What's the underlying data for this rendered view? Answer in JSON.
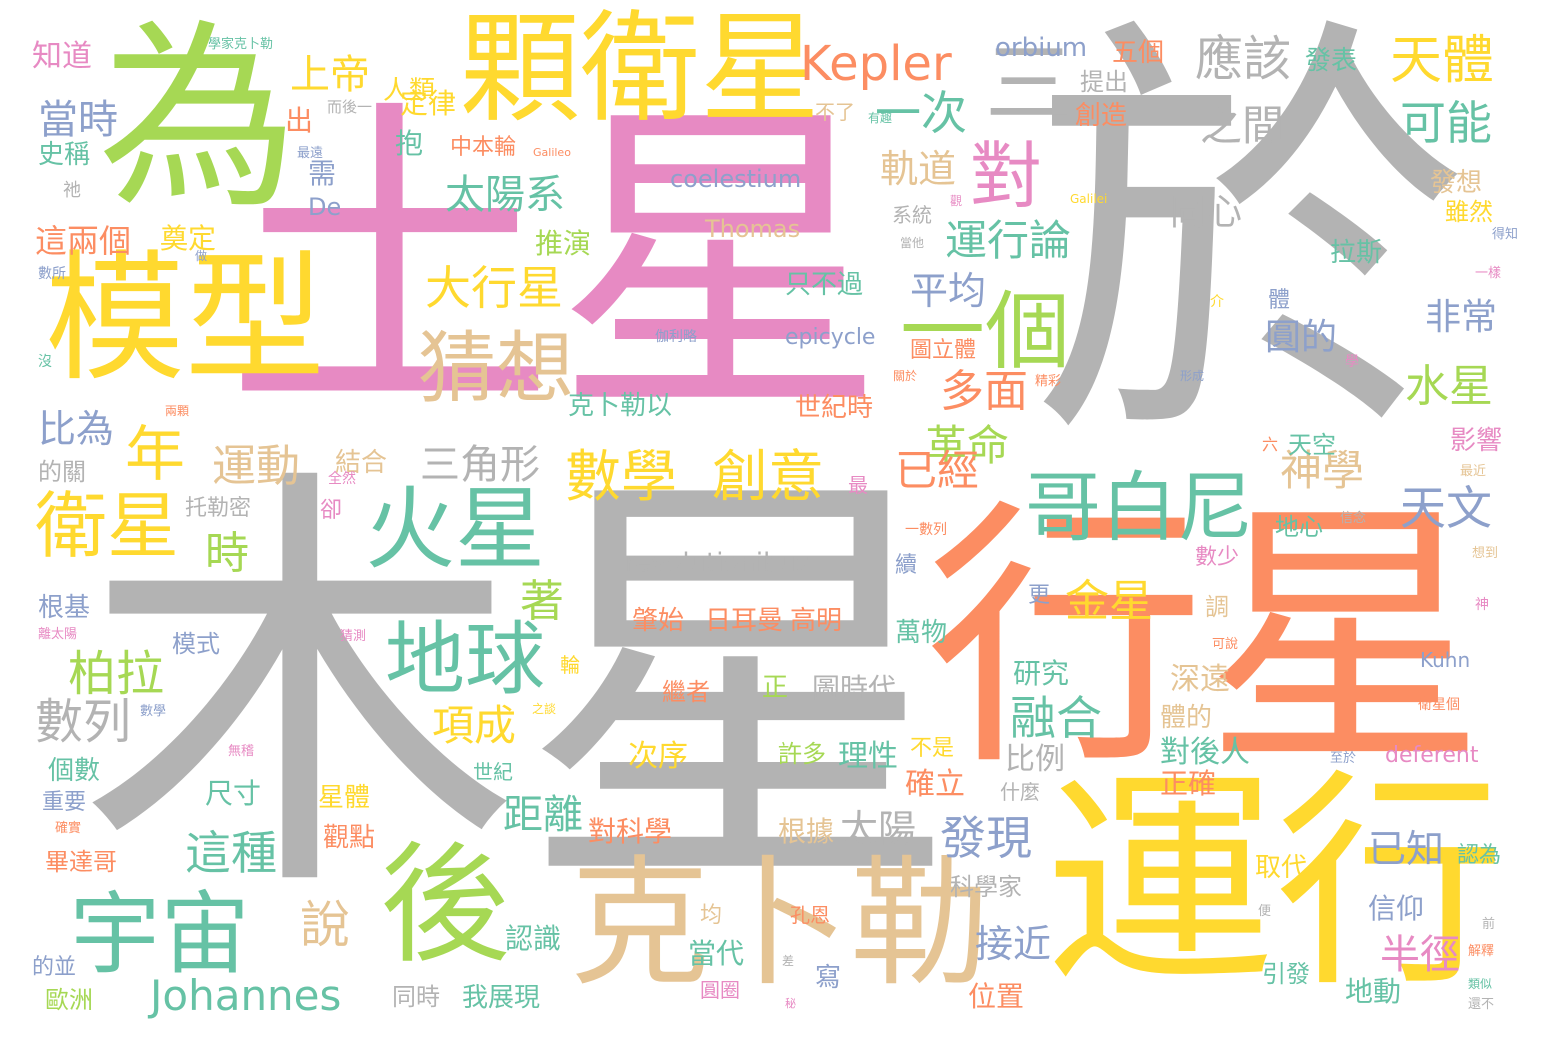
{
  "palette": {
    "pink": "#e78ac3",
    "gray": "#b3b3b3",
    "green": "#a6d854",
    "yellow": "#ffd92f",
    "orange": "#fc8d62",
    "teal": "#66c2a5",
    "tan": "#e5c494",
    "blue": "#8da0cb"
  },
  "words": {
    "tu_xing": "土星",
    "mu_xing": "木星",
    "yu": "於",
    "wei": "為",
    "xing_xing": "行星",
    "yun_xing": "運行",
    "mo_xing": "模型",
    "ke_bo_le": "克卜勒",
    "ke_wei_xing": "顆衛星",
    "hou": "後",
    "huo_xing": "火星",
    "yu_zhou": "宇宙",
    "di_qiu": "地球",
    "cai_xiang": "猜想",
    "yi_ge": "一個",
    "ge_bai_ni": "哥白尼",
    "wei_xing": "衛星",
    "dui": "對",
    "san": "三",
    "kepler": "Kepler",
    "johannes": "Johannes",
    "tian_ti": "天體",
    "ying_gai": "應該",
    "shang_di": "上帝",
    "ren_lei": "人類",
    "nian": "年",
    "tai_yang_xi": "太陽系",
    "da_xing_xing": "大行星",
    "yun_dong": "運動",
    "shu_xue": "數學",
    "chuang_yi": "創意",
    "bo_la": "柏拉",
    "shu_lie": "數列",
    "xiang_cheng": "項成",
    "shuo": "說",
    "yi_ci": "一次",
    "zhi_jian": "之間",
    "ke_neng": "可能",
    "yun_xing_lun": "運行論",
    "gui_dao": "軌道",
    "ping_jun": "平均",
    "duo_mian": "多面",
    "ge_ming": "革命",
    "yi_jing": "已經",
    "shen_xue": "神學",
    "tian_wen": "天文",
    "shui_xing": "水星",
    "fei_chang": "非常",
    "yuan_de": "圓的",
    "tong_xin": "同心",
    "san_jiao_xing": "三角形",
    "jin_xing": "金星",
    "rong_he": "融合",
    "fa_xian": "發現",
    "jie_jin": "接近",
    "ban_jing": "半徑",
    "yi_zhi": "已知",
    "xin_yang": "信仰",
    "ju_li": "距離",
    "zhe_zhong": "這種",
    "tai_yang": "太陽",
    "zhu": "著",
    "shi": "時",
    "bi_wei": "比為",
    "dang_shi": "當時",
    "zhe_liang_ge": "這兩個",
    "zhi_dao": "知道",
    "dang_shi_2": "當時",
    "shi_cheng": "史稱",
    "tui_yan": "推演",
    "dian_ding": "奠定",
    "ding_lv": "定律",
    "chu": "出",
    "bao": "抱",
    "xu": "需",
    "de": "De",
    "orbium": "orbium",
    "coelestium": "coelestium",
    "thomas": "Thomas",
    "revolutionibus": "revolutionibus",
    "epicycle": "epicycle",
    "deferent": "deferent",
    "kuhn": "Kuhn",
    "galileo": "Galileo",
    "galilei": "Galilei",
    "wu_ge": "五個",
    "fa_biao": "發表",
    "ti_chu": "提出",
    "chuang_zao": "創造",
    "bu_liao": "不了",
    "zhong_ben_lun": "中本輪",
    "fa_xiang": "發想",
    "sui_ran": "雖然",
    "la_si": "拉斯",
    "ti": "體",
    "shi_ji_shi": "世紀時",
    "tu_li_ti": "圖立體",
    "ke_bo_le_yi": "克卜勒以",
    "liu": "六",
    "tian_kong": "天空",
    "ying_xiang": "影響",
    "di_xin": "地心",
    "shu_shao": "數少",
    "gen_ji": "根基",
    "mo_shi": "模式",
    "ge_shu": "個數",
    "chi_cun": "尺寸",
    "zhong_yao": "重要",
    "bi_da_ge": "畢達哥",
    "ou_zhou": "歐洲",
    "de_bing": "的並",
    "tong_shi": "同時",
    "wo_zhan_xian": "我展現",
    "ren_shi": "認識",
    "dang_dai": "當代",
    "xie": "寫",
    "xing_ti": "星體",
    "guan_dian": "觀點",
    "dui_ke_xue": "對科學",
    "gen_ju": "根據",
    "que_li": "確立",
    "shen_me": "什麼",
    "ke_xue_jia": "科學家",
    "wei_zhi": "位置",
    "di_dong": "地動",
    "yin_fa": "引發",
    "qu_dai": "取代",
    "ren_wei": "認為",
    "zheng_que": "正確",
    "dui_hou_ren": "對後人",
    "ti_de": "體的",
    "shen_yuan": "深遠",
    "yan_jiu": "研究",
    "tu_shi_dai": "圖時代",
    "li_xing": "理性",
    "xu_duo": "許多",
    "ci_xu": "次序",
    "bi_li": "比例",
    "zhi_bu_guo": "只不過",
    "xi_tong": "系統",
    "wan_wu": "萬物",
    "gao_ming": "高明",
    "ri_er_man": "日耳曼",
    "zhao_shi": "肇始",
    "ji_zhe": "繼者",
    "bu_shi": "不是",
    "jie_he": "結合",
    "de_guan": "的關",
    "tuo_le_mi": "托勒密",
    "que": "卻",
    "zui": "最",
    "xu_2": "續",
    "geng": "更",
    "diao": "調",
    "lun": "輪",
    "zheng": "正",
    "yun": "均",
    "kong_en": "孔恩",
    "yuan_yuan": "圓圈",
    "shi_ji": "世紀",
    "xue_jia_ke_bo_le": "學家克卜勒",
    "er_hou_yi": "而後一",
    "zui_dao": "最遠",
    "ci": "祂",
    "shu_suo": "數所",
    "mei": "沒",
    "liang_ke": "兩顆",
    "zuo": "做",
    "jia_li_lue": "伽利略",
    "you_qu": "有趣",
    "dang_ta": "當他",
    "de_zhi": "得知",
    "yi_yang": "一樣",
    "jie": "介",
    "xue": "學",
    "xing_cheng": "形成",
    "jing_cai": "精彩",
    "guan_yu": "關於",
    "zui_jin": "最近",
    "xin_nian": "信念",
    "yi_shu_lie": "一數列",
    "xiang_dao": "想到",
    "shen": "神",
    "ke_shuo": "可說",
    "wei_xing_ge": "衛星個",
    "zhi_yu": "至於",
    "pian": "便",
    "jie_shi": "解釋",
    "lei_si": "類似",
    "hai_bu": "還不",
    "zhi_jing": "之談",
    "cai_ce": "猜測",
    "li_tai_yang": "離太陽",
    "shu_xue_2": "數學",
    "wu_chou": "無稽",
    "que_shi": "確實",
    "qu": "全然",
    "cha": "差",
    "bi": "秘",
    "qian": "前",
    "ji": "觀"
  }
}
